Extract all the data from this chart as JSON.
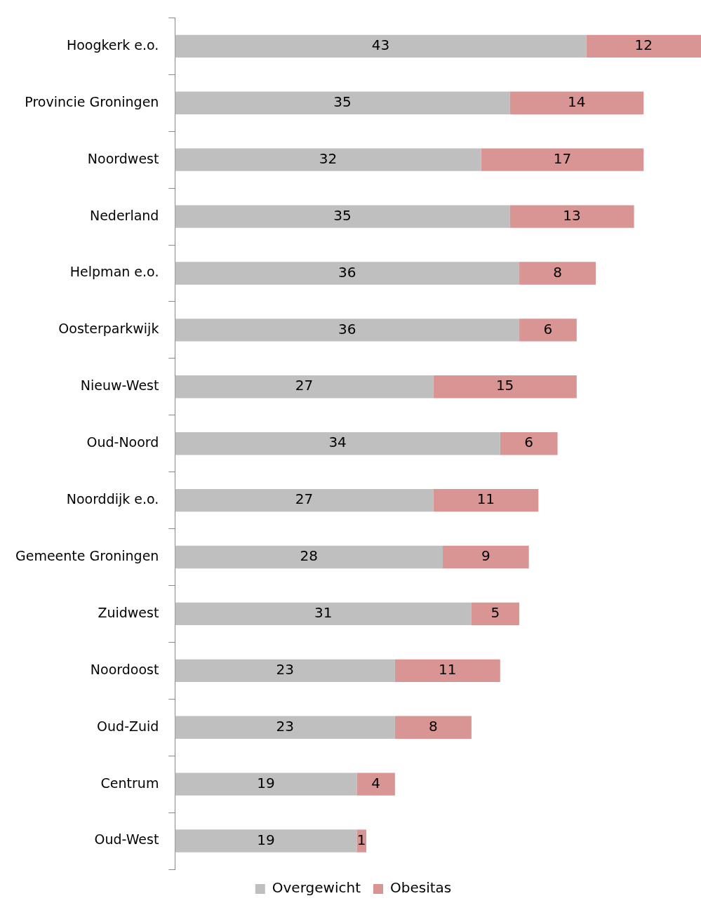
{
  "chart_data": {
    "type": "bar",
    "orientation": "horizontal",
    "stacked": true,
    "data_labels": true,
    "legend": "bottom",
    "grid": false,
    "tick_labels": "y",
    "xlim": [
      0,
      55
    ],
    "categories": [
      "Hoogkerk e.o.",
      "Provincie Groningen",
      "Noordwest",
      "Nederland",
      "Helpman e.o.",
      "Oosterparkwijk",
      "Nieuw-West",
      "Oud-Noord",
      "Noorddijk e.o.",
      "Gemeente Groningen",
      "Zuidwest",
      "Noordoost",
      "Oud-Zuid",
      "Centrum",
      "Oud-West"
    ],
    "series": [
      {
        "name": "Overgewicht",
        "color": "#bfbfbf",
        "values": [
          43,
          35,
          32,
          35,
          36,
          36,
          27,
          34,
          27,
          28,
          31,
          23,
          23,
          19,
          19
        ]
      },
      {
        "name": "Obesitas",
        "color": "#d99594",
        "values": [
          12,
          14,
          17,
          13,
          8,
          6,
          15,
          6,
          11,
          9,
          5,
          11,
          8,
          4,
          1
        ]
      }
    ]
  }
}
